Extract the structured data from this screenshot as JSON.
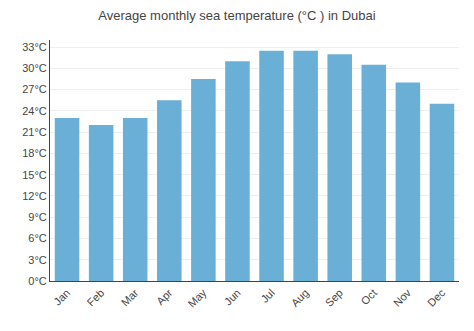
{
  "chart_data": {
    "type": "bar",
    "title": "Average monthly sea temperature (°C ) in Dubai",
    "categories": [
      "Jan",
      "Feb",
      "Mar",
      "Apr",
      "May",
      "Jun",
      "Jul",
      "Aug",
      "Sep",
      "Oct",
      "Nov",
      "Dec"
    ],
    "values": [
      23,
      22,
      23,
      25.5,
      28.5,
      31,
      32.5,
      32.5,
      32,
      30.5,
      28,
      25
    ],
    "color": "#6aafd6",
    "ylim": [
      0,
      34
    ],
    "yticks": [
      {
        "value": 0,
        "label": "0°C"
      },
      {
        "value": 3,
        "label": "3°C"
      },
      {
        "value": 6,
        "label": "6°C"
      },
      {
        "value": 9,
        "label": "9°C"
      },
      {
        "value": 12,
        "label": "12°C"
      },
      {
        "value": 15,
        "label": "15°C"
      },
      {
        "value": 18,
        "label": "18°C"
      },
      {
        "value": 21,
        "label": "21°C"
      },
      {
        "value": 24,
        "label": "24°C"
      },
      {
        "value": 27,
        "label": "27°C"
      },
      {
        "value": 30,
        "label": "30°C"
      },
      {
        "value": 33,
        "label": "33°C"
      }
    ],
    "grid": true
  }
}
